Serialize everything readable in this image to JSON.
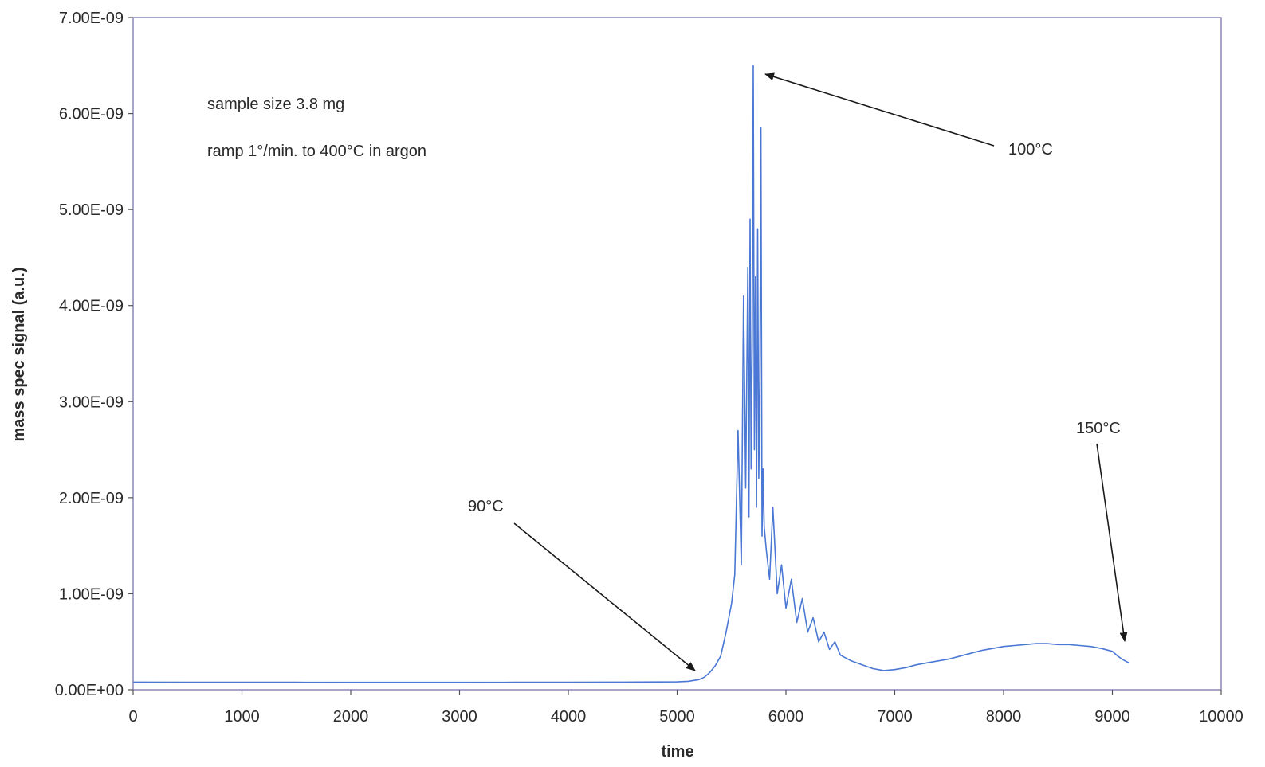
{
  "chart_data": {
    "type": "line",
    "title": "",
    "xlabel": "time",
    "ylabel": "mass spec signal (a.u.)",
    "xlim": [
      0,
      10000
    ],
    "ylim": [
      0,
      7e-09
    ],
    "x_ticks": [
      0,
      1000,
      2000,
      3000,
      4000,
      5000,
      6000,
      7000,
      8000,
      9000,
      10000
    ],
    "x_tick_labels": [
      "0",
      "1000",
      "2000",
      "3000",
      "4000",
      "5000",
      "6000",
      "7000",
      "8000",
      "9000",
      "10000"
    ],
    "y_ticks": [
      0,
      1e-09,
      2e-09,
      3e-09,
      4e-09,
      5e-09,
      6e-09,
      7e-09
    ],
    "y_tick_labels": [
      "0.00E+00",
      "1.00E-09",
      "2.00E-09",
      "3.00E-09",
      "4.00E-09",
      "5.00E-09",
      "6.00E-09",
      "7.00E-09"
    ],
    "grid": false,
    "legend": "none",
    "line_color": "#4a78d4",
    "notes": [
      "sample size 3.8 mg",
      "ramp 1°/min. to 400°C in argon"
    ],
    "annotations": [
      {
        "text": "90°C",
        "point_x": 5200,
        "point_y": 1.5e-10
      },
      {
        "text": "100°C",
        "point_x": 5720,
        "point_y": 6.4e-09
      },
      {
        "text": "150°C",
        "point_x": 9120,
        "point_y": 4.5e-10
      }
    ],
    "series": [
      {
        "x": [
          0,
          500,
          1000,
          1500,
          2000,
          2500,
          3000,
          3500,
          4000,
          4500,
          5000,
          5100,
          5200,
          5250,
          5300,
          5350,
          5400,
          5450,
          5500,
          5530,
          5560,
          5590,
          5610,
          5630,
          5650,
          5660,
          5670,
          5680,
          5690,
          5700,
          5710,
          5720,
          5730,
          5740,
          5750,
          5760,
          5770,
          5780,
          5790,
          5800,
          5820,
          5850,
          5880,
          5920,
          5960,
          6000,
          6050,
          6100,
          6150,
          6200,
          6250,
          6300,
          6350,
          6400,
          6450,
          6500,
          6600,
          6700,
          6800,
          6900,
          7000,
          7100,
          7200,
          7300,
          7400,
          7500,
          7600,
          7700,
          7800,
          7900,
          8000,
          8100,
          8200,
          8300,
          8400,
          8500,
          8600,
          8700,
          8800,
          8900,
          9000,
          9050,
          9100,
          9150
        ],
        "y": [
          8e-11,
          7.8e-11,
          7.8e-11,
          7.8e-11,
          7.7e-11,
          7.7e-11,
          7.7e-11,
          7.8e-11,
          7.8e-11,
          8e-11,
          8.2e-11,
          8.8e-11,
          1.05e-10,
          1.3e-10,
          1.8e-10,
          2.5e-10,
          3.5e-10,
          6e-10,
          9e-10,
          1.2e-09,
          2.7e-09,
          1.3e-09,
          4.1e-09,
          2.1e-09,
          4.4e-09,
          1.8e-09,
          4.9e-09,
          2.3e-09,
          3.6e-09,
          6.5e-09,
          2.5e-09,
          4.3e-09,
          1.9e-09,
          4.8e-09,
          2.2e-09,
          3.2e-09,
          5.85e-09,
          1.6e-09,
          2.3e-09,
          1.7e-09,
          1.45e-09,
          1.15e-09,
          1.9e-09,
          1e-09,
          1.3e-09,
          8.5e-10,
          1.15e-09,
          7e-10,
          9.5e-10,
          6e-10,
          7.5e-10,
          5e-10,
          6e-10,
          4.2e-10,
          5e-10,
          3.6e-10,
          3e-10,
          2.6e-10,
          2.2e-10,
          2e-10,
          2.1e-10,
          2.3e-10,
          2.6e-10,
          2.8e-10,
          3e-10,
          3.2e-10,
          3.5e-10,
          3.8e-10,
          4.1e-10,
          4.3e-10,
          4.5e-10,
          4.6e-10,
          4.7e-10,
          4.8e-10,
          4.8e-10,
          4.7e-10,
          4.7e-10,
          4.6e-10,
          4.5e-10,
          4.3e-10,
          4e-10,
          3.5e-10,
          3.1e-10,
          2.8e-10
        ]
      }
    ]
  }
}
